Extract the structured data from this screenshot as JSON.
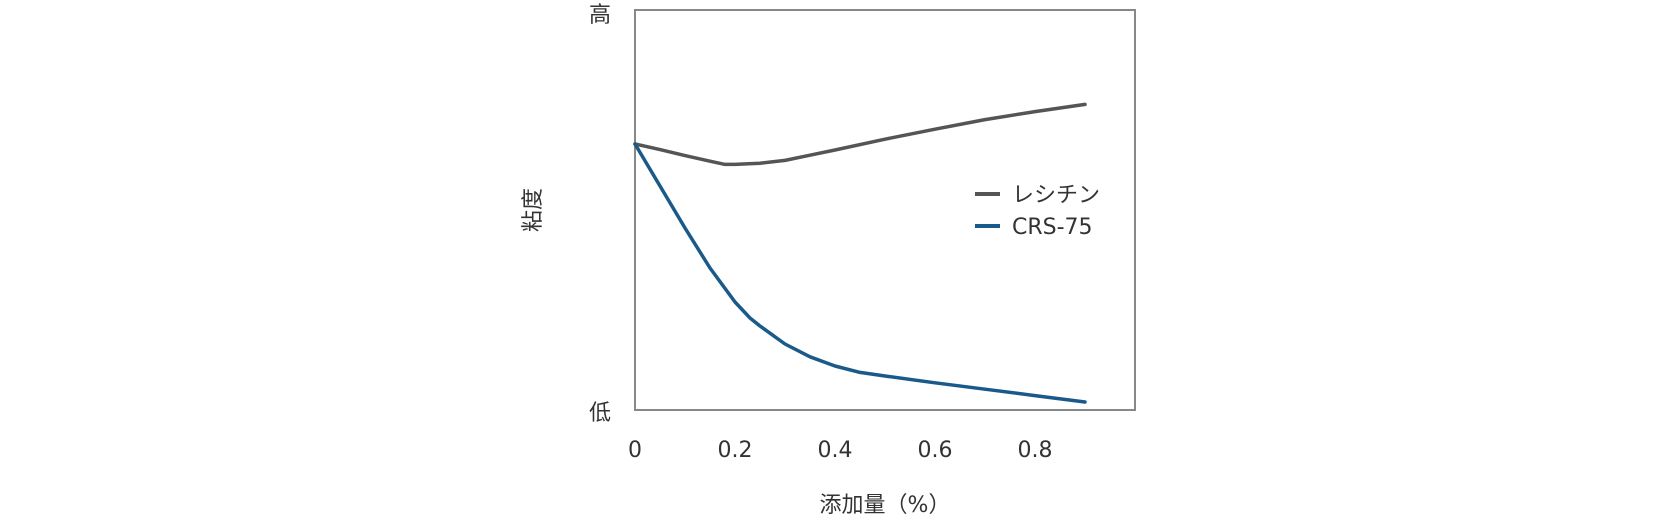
{
  "chart_data": {
    "type": "line",
    "xlabel": "添加量（%）",
    "ylabel": "粘度",
    "y_high_label": "高",
    "y_low_label": "低",
    "xlim": [
      0,
      1.0
    ],
    "ylim": [
      0,
      1.0
    ],
    "x_ticks": [
      "0",
      "0.2",
      "0.4",
      "0.6",
      "0.8"
    ],
    "grid": false,
    "legend_position": "right-middle",
    "series": [
      {
        "name": "レシチン",
        "color": "#555555",
        "x": [
          0,
          0.05,
          0.1,
          0.15,
          0.18,
          0.2,
          0.25,
          0.3,
          0.35,
          0.4,
          0.5,
          0.6,
          0.7,
          0.8,
          0.9
        ],
        "y": [
          0.665,
          0.651,
          0.636,
          0.622,
          0.614,
          0.614,
          0.617,
          0.624,
          0.637,
          0.65,
          0.677,
          0.702,
          0.726,
          0.746,
          0.764
        ]
      },
      {
        "name": "CRS-75",
        "color": "#1a5a8a",
        "x": [
          0,
          0.05,
          0.1,
          0.15,
          0.2,
          0.23,
          0.25,
          0.3,
          0.35,
          0.4,
          0.45,
          0.5,
          0.6,
          0.7,
          0.8,
          0.9
        ],
        "y": [
          0.665,
          0.56,
          0.455,
          0.355,
          0.27,
          0.23,
          0.21,
          0.165,
          0.133,
          0.11,
          0.094,
          0.085,
          0.068,
          0.052,
          0.036,
          0.02
        ]
      }
    ]
  }
}
